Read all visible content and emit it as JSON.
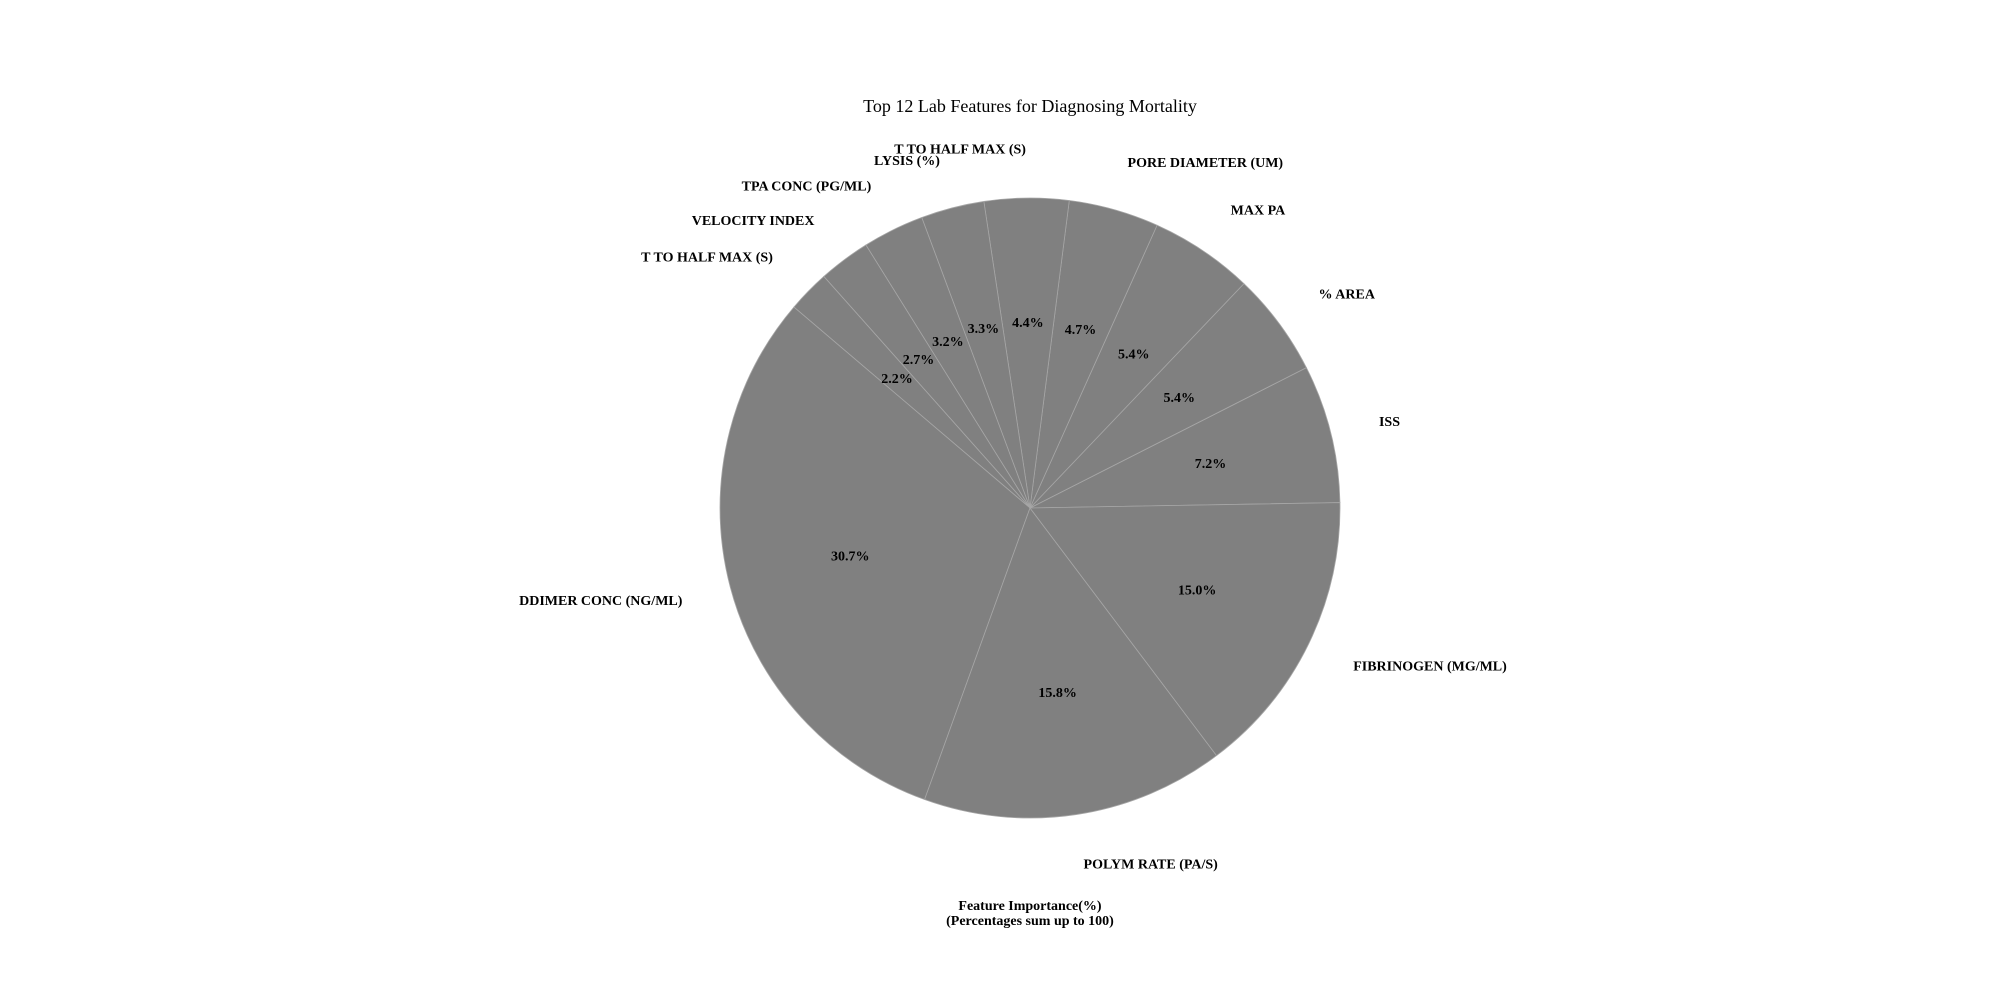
{
  "chart_data": {
    "type": "pie",
    "title": "Top 12 Lab Features for Diagnosing Mortality",
    "xlabel_lines": [
      "Feature Importance(%)",
      "(Percentages sum up to 100)"
    ],
    "start_angle_deg": 1,
    "direction": "counterclockwise",
    "slice_color": "#808080",
    "edge_color": "#a6a6a6",
    "slices": [
      {
        "label": "ISS",
        "pct_label": "7.2%",
        "value": 7.2
      },
      {
        "label": "% AREA",
        "pct_label": "5.4%",
        "value": 5.4
      },
      {
        "label": "MAX PA",
        "pct_label": "5.4%",
        "value": 5.4
      },
      {
        "label": "PORE DIAMETER (UM)",
        "pct_label": "4.7%",
        "value": 4.7
      },
      {
        "label": "T TO HALF MAX (S)",
        "pct_label": "4.4%",
        "value": 4.4
      },
      {
        "label": "LYSIS (%)",
        "pct_label": "3.3%",
        "value": 3.3
      },
      {
        "label": "TPA CONC (PG/ML)",
        "pct_label": "3.2%",
        "value": 3.2
      },
      {
        "label": "VELOCITY INDEX",
        "pct_label": "2.7%",
        "value": 2.7
      },
      {
        "label": "T TO HALF MAX (S)",
        "pct_label": "2.2%",
        "value": 2.2
      },
      {
        "label": "DDIMER CONC (NG/ML)",
        "pct_label": "30.7%",
        "value": 30.7
      },
      {
        "label": "POLYM RATE (PA/S)",
        "pct_label": "15.8%",
        "value": 15.8
      },
      {
        "label": "FIBRINOGEN (MG/ML)",
        "pct_label": "15.0%",
        "value": 15.0
      }
    ]
  }
}
